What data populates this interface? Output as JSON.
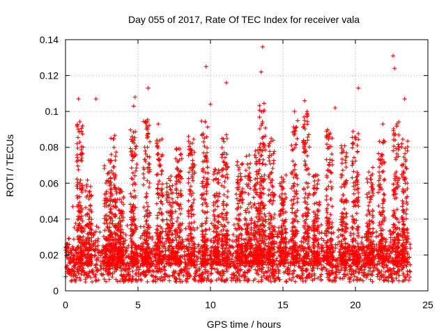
{
  "chart_data": {
    "type": "scatter",
    "title": "Day 055 of 2017, Rate Of TEC Index for receiver vala",
    "xlabel": "GPS time / hours",
    "ylabel": "ROTI / TECUs",
    "xlim": [
      0,
      25
    ],
    "ylim": [
      0,
      0.14
    ],
    "x_ticks": [
      0,
      5,
      10,
      15,
      20,
      25
    ],
    "x_tick_labels": [
      "0",
      "5",
      "10",
      "15",
      "20",
      "25"
    ],
    "y_ticks": [
      0,
      0.02,
      0.04,
      0.06,
      0.08,
      0.1,
      0.12,
      0.14
    ],
    "y_tick_labels": [
      "0",
      "0.02",
      "0.04",
      "0.06",
      "0.08",
      "0.1",
      "0.12",
      "0.14"
    ],
    "grid": true,
    "marker": "plus",
    "series_color": "#ff0000",
    "notable_points": [
      {
        "x": 13.6,
        "y": 0.136
      },
      {
        "x": 22.6,
        "y": 0.131
      },
      {
        "x": 9.7,
        "y": 0.125
      },
      {
        "x": 22.7,
        "y": 0.124
      },
      {
        "x": 13.5,
        "y": 0.122
      },
      {
        "x": 11.1,
        "y": 0.116
      },
      {
        "x": 5.7,
        "y": 0.113
      },
      {
        "x": 20.2,
        "y": 0.113
      },
      {
        "x": 4.8,
        "y": 0.108
      },
      {
        "x": 0.9,
        "y": 0.107
      },
      {
        "x": 2.1,
        "y": 0.107
      },
      {
        "x": 16.5,
        "y": 0.106
      },
      {
        "x": 23.4,
        "y": 0.107
      },
      {
        "x": 10.0,
        "y": 0.104
      },
      {
        "x": 4.7,
        "y": 0.103
      },
      {
        "x": 18.6,
        "y": 0.102
      },
      {
        "x": 15.8,
        "y": 0.1
      },
      {
        "x": 6.4,
        "y": 0.093
      },
      {
        "x": 21.9,
        "y": 0.093
      },
      {
        "x": 11.1,
        "y": 0.087
      },
      {
        "x": 0.5,
        "y": 0.047
      }
    ],
    "density_profile": {
      "description": "dense band of observations at low ROTI with spiky bursts, sampled over GPS time",
      "x_range": [
        0.0,
        23.8
      ],
      "baseline_range": [
        0.005,
        0.025
      ],
      "burst_peaks": [
        {
          "x": 1.0,
          "y": 0.096
        },
        {
          "x": 1.6,
          "y": 0.062
        },
        {
          "x": 2.9,
          "y": 0.075
        },
        {
          "x": 3.3,
          "y": 0.087
        },
        {
          "x": 3.8,
          "y": 0.058
        },
        {
          "x": 4.7,
          "y": 0.09
        },
        {
          "x": 5.6,
          "y": 0.096
        },
        {
          "x": 6.5,
          "y": 0.085
        },
        {
          "x": 7.2,
          "y": 0.065
        },
        {
          "x": 7.8,
          "y": 0.08
        },
        {
          "x": 8.7,
          "y": 0.087
        },
        {
          "x": 9.6,
          "y": 0.095
        },
        {
          "x": 10.4,
          "y": 0.07
        },
        {
          "x": 11.0,
          "y": 0.085
        },
        {
          "x": 12.0,
          "y": 0.072
        },
        {
          "x": 12.6,
          "y": 0.077
        },
        {
          "x": 13.2,
          "y": 0.08
        },
        {
          "x": 13.6,
          "y": 0.105
        },
        {
          "x": 14.2,
          "y": 0.085
        },
        {
          "x": 15.0,
          "y": 0.065
        },
        {
          "x": 15.8,
          "y": 0.095
        },
        {
          "x": 16.6,
          "y": 0.1
        },
        {
          "x": 17.3,
          "y": 0.065
        },
        {
          "x": 18.2,
          "y": 0.09
        },
        {
          "x": 19.2,
          "y": 0.083
        },
        {
          "x": 20.0,
          "y": 0.09
        },
        {
          "x": 21.0,
          "y": 0.07
        },
        {
          "x": 21.8,
          "y": 0.085
        },
        {
          "x": 22.8,
          "y": 0.1
        },
        {
          "x": 23.4,
          "y": 0.085
        }
      ]
    }
  }
}
